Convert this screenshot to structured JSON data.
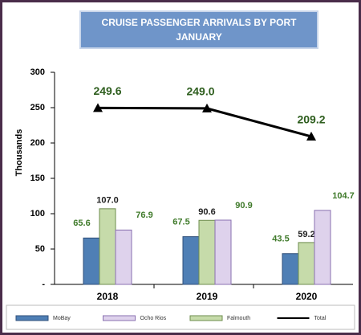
{
  "chart_data": {
    "type": "bar",
    "title": "CRUISE  PASSENGER ARRIVALS BY PORT",
    "subtitle": "JANUARY",
    "ylabel": "Thousands",
    "categories": [
      "2018",
      "2019",
      "2020"
    ],
    "ylim": [
      0,
      300
    ],
    "yticks": [
      {
        "value": 0,
        "label": "-"
      },
      50,
      100,
      150,
      200,
      250,
      300
    ],
    "series": [
      {
        "name": "MoBay",
        "color": "#4f7fb5",
        "values": [
          65.6,
          67.5,
          43.5
        ],
        "value_labels": [
          "65.6",
          "67.5",
          "43.5"
        ]
      },
      {
        "name": "Falmouth",
        "color": "#c6dbaa",
        "values": [
          107.0,
          90.6,
          59.2
        ],
        "value_labels": [
          "107.0",
          "90.6",
          "59.2"
        ]
      },
      {
        "name": "Ocho Rios",
        "color": "#ded2ec",
        "values": [
          76.9,
          90.9,
          104.7
        ],
        "value_labels": [
          "76.9",
          "90.9",
          "104.7"
        ]
      },
      {
        "name": "Total",
        "type": "line",
        "color": "#000000",
        "values": [
          249.6,
          249.0,
          209.2
        ],
        "value_labels": [
          "249.6",
          "249.0",
          "209.2"
        ]
      }
    ],
    "legend_order": [
      0,
      2,
      1,
      3
    ]
  }
}
